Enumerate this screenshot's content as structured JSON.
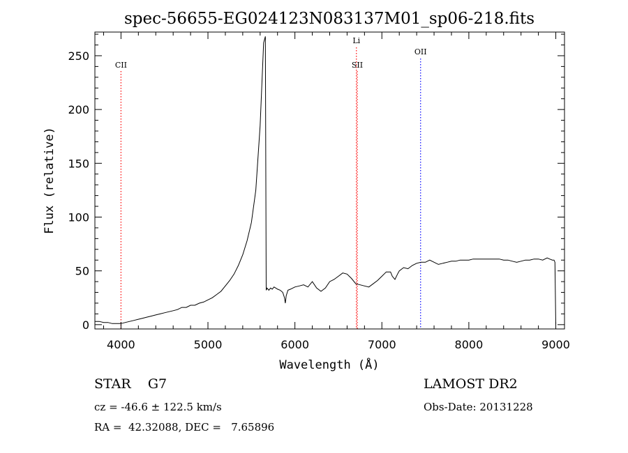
{
  "chart_data": {
    "type": "line",
    "title": "spec-56655-EG024123N083137M01_sp06-218.fits",
    "xlabel": "Wavelength (Å)",
    "ylabel": "Flux (relative)",
    "xlim": [
      3700,
      9100
    ],
    "ylim": [
      -4,
      272
    ],
    "xticks": [
      4000,
      5000,
      6000,
      7000,
      8000,
      9000
    ],
    "yticks": [
      0,
      50,
      100,
      150,
      200,
      250
    ],
    "grid": false,
    "line_color": "#000000",
    "series": [
      {
        "x": [
          3700,
          3750,
          3800,
          3850,
          3900,
          3950,
          4000,
          4050,
          4100,
          4150,
          4200,
          4250,
          4300,
          4350,
          4400,
          4450,
          4500,
          4550,
          4600,
          4650,
          4700,
          4750,
          4800,
          4850,
          4900,
          4950,
          5000,
          5050,
          5100,
          5150,
          5200,
          5250,
          5300,
          5350,
          5400,
          5450,
          5500,
          5550,
          5600,
          5640,
          5660,
          5670,
          5680,
          5700,
          5720,
          5740,
          5760,
          5780,
          5800,
          5830,
          5860,
          5880,
          5890,
          5900,
          5920,
          5950,
          6000,
          6050,
          6100,
          6150,
          6200,
          6250,
          6300,
          6350,
          6400,
          6450,
          6500,
          6550,
          6600,
          6650,
          6700,
          6750,
          6800,
          6850,
          6900,
          6950,
          7000,
          7050,
          7100,
          7120,
          7150,
          7180,
          7200,
          7250,
          7300,
          7350,
          7400,
          7450,
          7500,
          7550,
          7600,
          7650,
          7700,
          7750,
          7800,
          7850,
          7900,
          7950,
          8000,
          8050,
          8100,
          8150,
          8200,
          8250,
          8300,
          8350,
          8400,
          8450,
          8500,
          8550,
          8600,
          8650,
          8700,
          8750,
          8800,
          8850,
          8900,
          8930,
          8960,
          8980,
          8990,
          9000
        ],
        "y": [
          3,
          3,
          2,
          2,
          1,
          1,
          1,
          2,
          3,
          4,
          5,
          6,
          7,
          8,
          9,
          10,
          11,
          12,
          13,
          14,
          16,
          16,
          18,
          18,
          20,
          21,
          23,
          25,
          28,
          31,
          36,
          41,
          47,
          55,
          65,
          78,
          95,
          125,
          185,
          262,
          268,
          32,
          34,
          32,
          34,
          33,
          35,
          34,
          33,
          32,
          30,
          25,
          20,
          27,
          32,
          33,
          35,
          36,
          37,
          35,
          40,
          34,
          31,
          34,
          40,
          42,
          45,
          48,
          47,
          43,
          38,
          37,
          36,
          35,
          38,
          41,
          45,
          49,
          49,
          45,
          42,
          47,
          50,
          53,
          52,
          55,
          57,
          58,
          58,
          60,
          58,
          56,
          57,
          58,
          59,
          59,
          60,
          60,
          60,
          61,
          61,
          61,
          61,
          61,
          61,
          61,
          60,
          60,
          59,
          58,
          59,
          60,
          60,
          61,
          61,
          60,
          62,
          61,
          60,
          60,
          58,
          0
        ]
      }
    ],
    "lines": [
      {
        "label": "CII",
        "x": 4000,
        "color": "#ff0000"
      },
      {
        "label": "Li",
        "x": 6707,
        "color": "#ff0000"
      },
      {
        "label": "SII",
        "x": 6717,
        "color": "#ff0000"
      },
      {
        "label": "OII",
        "x": 7445,
        "color": "#0000ff"
      }
    ]
  },
  "info": {
    "class_text": "STAR    G7",
    "survey": "LAMOST DR2",
    "cz": "cz = -46.6 ± 122.5 km/s",
    "obs_date": "Obs-Date: 20131228",
    "radec": "RA =  42.32088, DEC =   7.65896"
  }
}
